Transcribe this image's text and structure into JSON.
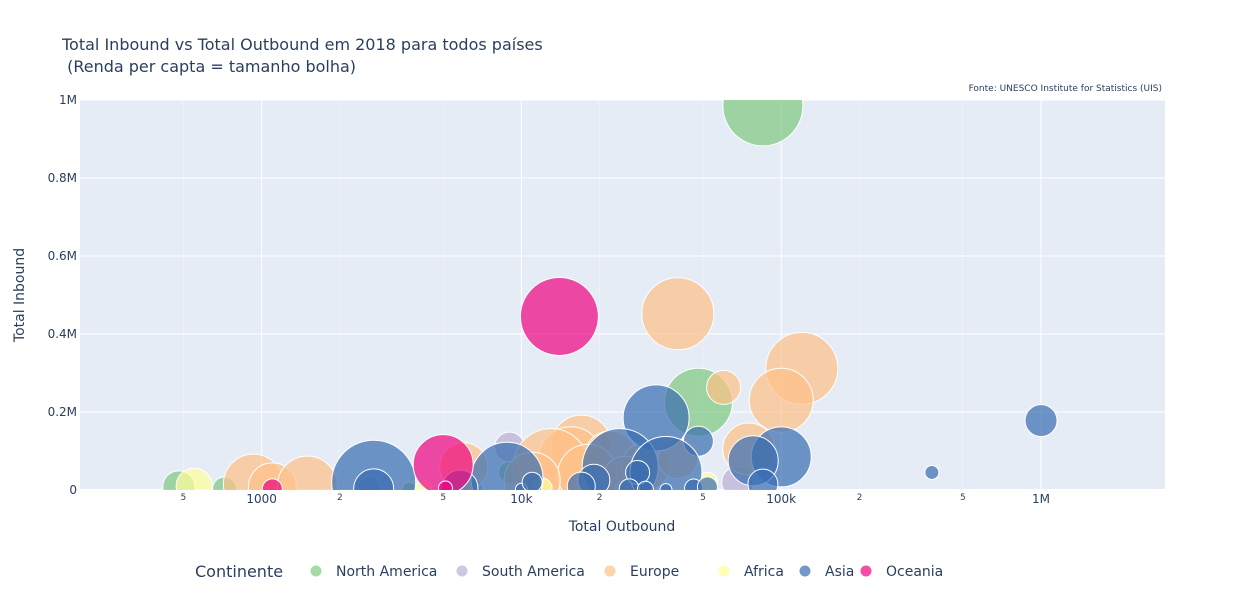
{
  "chart_data": {
    "type": "scatter",
    "title_line1": "Total Inbound vs Total Outbound em 2018 para todos países",
    "title_line2": " (Renda per capta = tamanho bolha)",
    "source": "Fonte:  UNESCO Institute for Statistics (UIS)",
    "xlabel": "Total Outbound",
    "ylabel": "Total Inbound",
    "x_scale": "log",
    "xlim": [
      200,
      3000000
    ],
    "ylim": [
      0,
      1000000
    ],
    "grid": true,
    "x_major_ticks": [
      {
        "v": 1000,
        "label": "1000"
      },
      {
        "v": 10000,
        "label": "10k"
      },
      {
        "v": 100000,
        "label": "100k"
      },
      {
        "v": 1000000,
        "label": "1M"
      }
    ],
    "x_minor_ticks": [
      {
        "v": 500,
        "label": "5"
      },
      {
        "v": 2000,
        "label": "2"
      },
      {
        "v": 5000,
        "label": "5"
      },
      {
        "v": 20000,
        "label": "2"
      },
      {
        "v": 50000,
        "label": "5"
      },
      {
        "v": 200000,
        "label": "2"
      },
      {
        "v": 500000,
        "label": "5"
      }
    ],
    "y_ticks": [
      {
        "v": 0,
        "label": "0"
      },
      {
        "v": 200000,
        "label": "0.2M"
      },
      {
        "v": 400000,
        "label": "0.4M"
      },
      {
        "v": 600000,
        "label": "0.6M"
      },
      {
        "v": 800000,
        "label": "0.8M"
      },
      {
        "v": 1000000,
        "label": "1M"
      }
    ],
    "legend": {
      "title": "Continente",
      "placement": "bottom",
      "items": [
        {
          "name": "North America",
          "color": "#7fc97f"
        },
        {
          "name": "South America",
          "color": "#beaed4"
        },
        {
          "name": "Europe",
          "color": "#fdc086"
        },
        {
          "name": "Africa",
          "color": "#ffff99"
        },
        {
          "name": "Asia",
          "color": "#386cb0"
        },
        {
          "name": "Oceania",
          "color": "#f0027f"
        }
      ]
    },
    "series": [
      {
        "name": "North America",
        "color": "#7fc97f",
        "points": [
          {
            "x": 85000,
            "y": 985000,
            "r": 40
          },
          {
            "x": 48000,
            "y": 225000,
            "r": 34
          },
          {
            "x": 480,
            "y": 8000,
            "r": 16
          },
          {
            "x": 720,
            "y": 3000,
            "r": 12
          },
          {
            "x": 3700,
            "y": 2000,
            "r": 7
          },
          {
            "x": 9000,
            "y": 45000,
            "r": 11
          }
        ]
      },
      {
        "name": "South America",
        "color": "#beaed4",
        "points": [
          {
            "x": 9000,
            "y": 110000,
            "r": 15
          },
          {
            "x": 68000,
            "y": 20000,
            "r": 16
          },
          {
            "x": 2600,
            "y": 5000,
            "r": 11
          },
          {
            "x": 11000,
            "y": 12000,
            "r": 10
          },
          {
            "x": 6500,
            "y": 4000,
            "r": 10
          }
        ]
      },
      {
        "name": "Europe",
        "color": "#fdc086",
        "points": [
          {
            "x": 40000,
            "y": 452000,
            "r": 36
          },
          {
            "x": 120000,
            "y": 312000,
            "r": 36
          },
          {
            "x": 60000,
            "y": 263000,
            "r": 17
          },
          {
            "x": 100000,
            "y": 230000,
            "r": 32
          },
          {
            "x": 75000,
            "y": 105000,
            "r": 26
          },
          {
            "x": 17000,
            "y": 115000,
            "r": 30
          },
          {
            "x": 15500,
            "y": 80000,
            "r": 32
          },
          {
            "x": 22000,
            "y": 85000,
            "r": 26
          },
          {
            "x": 13000,
            "y": 60000,
            "r": 38
          },
          {
            "x": 18000,
            "y": 40000,
            "r": 30
          },
          {
            "x": 6000,
            "y": 60000,
            "r": 24
          },
          {
            "x": 930,
            "y": 15000,
            "r": 30
          },
          {
            "x": 1100,
            "y": 8000,
            "r": 24
          },
          {
            "x": 1500,
            "y": 10000,
            "r": 30
          },
          {
            "x": 11000,
            "y": 25000,
            "r": 28
          },
          {
            "x": 30000,
            "y": 60000,
            "r": 24
          },
          {
            "x": 40000,
            "y": 80000,
            "r": 20
          },
          {
            "x": 25000,
            "y": 30000,
            "r": 22
          }
        ]
      },
      {
        "name": "Africa",
        "color": "#ffff99",
        "points": [
          {
            "x": 550,
            "y": 10000,
            "r": 18
          },
          {
            "x": 52000,
            "y": 20000,
            "r": 10
          },
          {
            "x": 12000,
            "y": 5000,
            "r": 10
          },
          {
            "x": 4200,
            "y": 3000,
            "r": 8
          }
        ]
      },
      {
        "name": "Asia",
        "color": "#386cb0",
        "points": [
          {
            "x": 33000,
            "y": 185000,
            "r": 33
          },
          {
            "x": 100000,
            "y": 85000,
            "r": 30
          },
          {
            "x": 78000,
            "y": 75000,
            "r": 25
          },
          {
            "x": 48000,
            "y": 125000,
            "r": 15
          },
          {
            "x": 1000000,
            "y": 178000,
            "r": 16
          },
          {
            "x": 380000,
            "y": 45000,
            "r": 7
          },
          {
            "x": 2700,
            "y": 20000,
            "r": 42
          },
          {
            "x": 2700,
            "y": 3000,
            "r": 20
          },
          {
            "x": 8800,
            "y": 30000,
            "r": 36
          },
          {
            "x": 24000,
            "y": 60000,
            "r": 38
          },
          {
            "x": 36000,
            "y": 45000,
            "r": 36
          },
          {
            "x": 19000,
            "y": 25000,
            "r": 16
          },
          {
            "x": 17000,
            "y": 10000,
            "r": 14
          },
          {
            "x": 28000,
            "y": 45000,
            "r": 12
          },
          {
            "x": 26000,
            "y": 3000,
            "r": 10
          },
          {
            "x": 30000,
            "y": 2000,
            "r": 8
          },
          {
            "x": 46000,
            "y": 5000,
            "r": 9
          },
          {
            "x": 52000,
            "y": 8000,
            "r": 10
          },
          {
            "x": 85000,
            "y": 15000,
            "r": 15
          },
          {
            "x": 36000,
            "y": 1000,
            "r": 6
          },
          {
            "x": 10000,
            "y": 2000,
            "r": 6
          },
          {
            "x": 5800,
            "y": 5000,
            "r": 18
          },
          {
            "x": 11000,
            "y": 20000,
            "r": 10
          }
        ]
      },
      {
        "name": "Oceania",
        "color": "#f0027f",
        "points": [
          {
            "x": 14000,
            "y": 445000,
            "r": 39
          },
          {
            "x": 5000,
            "y": 65000,
            "r": 30
          },
          {
            "x": 1100,
            "y": 3000,
            "r": 10
          },
          {
            "x": 5100,
            "y": 5000,
            "r": 7
          }
        ]
      }
    ]
  }
}
